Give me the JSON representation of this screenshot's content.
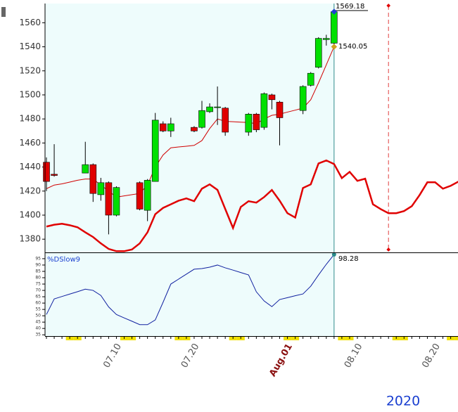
{
  "chart_data": [
    {
      "type": "candlestick",
      "categories": [
        null,
        null,
        null,
        null,
        null,
        null,
        null,
        null,
        null,
        "07.10",
        null,
        null,
        null,
        null,
        null,
        null,
        null,
        null,
        null,
        "07.20",
        null,
        null,
        null,
        null,
        null,
        null,
        null,
        null,
        null,
        null,
        null,
        "Aug.01",
        null,
        null,
        null,
        null,
        null,
        null,
        null,
        null,
        "08.10",
        null,
        null,
        null,
        null,
        null,
        null,
        null,
        null,
        null,
        "08.20",
        null,
        null,
        null
      ],
      "open": [
        1444,
        1434,
        null,
        null,
        null,
        1435,
        1442,
        1417,
        1427,
        1400,
        null,
        null,
        1427,
        1404,
        1428,
        1476,
        1470,
        null,
        null,
        1473,
        1473,
        1486,
        1490,
        1489,
        null,
        null,
        1469,
        1484,
        1473,
        1500,
        1494,
        null,
        null,
        1487,
        1508,
        1523,
        1546,
        1543,
        null,
        null,
        null,
        null,
        null,
        null,
        null,
        null,
        null,
        null,
        null,
        null,
        null,
        null,
        null,
        null
      ],
      "high": [
        1448,
        1459,
        null,
        null,
        null,
        1461,
        1443,
        1431,
        1428,
        1424,
        null,
        null,
        1428,
        1430,
        1485,
        1478,
        1481,
        null,
        null,
        1474,
        1495,
        1493,
        1507,
        1490,
        null,
        null,
        1485,
        1485,
        1502,
        1501,
        1495,
        null,
        null,
        1508,
        1519,
        1548,
        1550,
        1571,
        null,
        null,
        null,
        null,
        null,
        null,
        null,
        null,
        null,
        null,
        null,
        null,
        null,
        null,
        null,
        null
      ],
      "low": [
        1420,
        1432,
        null,
        null,
        null,
        1435,
        1411,
        1412,
        1384,
        1399,
        null,
        null,
        1404,
        1395,
        1428,
        1469,
        1465,
        null,
        null,
        1469,
        1472,
        1485,
        1475,
        1466,
        null,
        null,
        1466,
        1469,
        1471,
        1488,
        1458,
        null,
        null,
        1484,
        1507,
        1522,
        1541,
        1538,
        null,
        null,
        null,
        null,
        null,
        null,
        null,
        null,
        null,
        null,
        null,
        null,
        null,
        null,
        null,
        null
      ],
      "close": [
        1428,
        1433,
        null,
        null,
        null,
        1442,
        1418,
        1427,
        1400,
        1423,
        null,
        null,
        1405,
        1429,
        1479,
        1470,
        1476,
        null,
        null,
        1470,
        1487,
        1490,
        1490,
        1469,
        null,
        null,
        1484,
        1471,
        1501,
        1496,
        1481,
        null,
        null,
        1507,
        1518,
        1547,
        1547,
        1569.18,
        null,
        null,
        null,
        null,
        null,
        null,
        null,
        null,
        null,
        null,
        null,
        null,
        null,
        null,
        null,
        null
      ],
      "up_color": "#00e000",
      "down_color": "#e00000",
      "series": [
        {
          "color": "#d00000",
          "width": 1,
          "values": [
            1422,
            1425,
            1426,
            1427.5,
            1429,
            1430,
            1430,
            1425,
            1420,
            1415,
            1416,
            1417,
            1418,
            1425,
            1440,
            1450,
            1456,
            1456.7,
            1457.3,
            1458,
            1462,
            1472,
            1480,
            1478,
            1477.7,
            1477.3,
            1477,
            1476,
            1480,
            1483,
            1484,
            1485.7,
            1487.3,
            1489,
            1496,
            1510,
            1525,
            1540.05,
            null,
            null,
            null,
            null,
            null,
            null,
            null,
            null,
            null,
            null,
            null,
            null,
            null,
            null,
            null,
            null
          ]
        },
        {
          "color": "#e00000",
          "width": 2.5,
          "values": [
            1390.5,
            1392,
            1392.8,
            1391.6,
            1389.9,
            1385.7,
            1381.8,
            1376.5,
            1371.9,
            1370,
            1370,
            1371.4,
            1376.5,
            1385.7,
            1400.8,
            1406,
            1409,
            1412,
            1413.9,
            1411.6,
            1422,
            1425.6,
            1421,
            1405.1,
            1389.3,
            1406.8,
            1411.6,
            1410.4,
            1415,
            1420.9,
            1412,
            1401.6,
            1398,
            1422.6,
            1425.6,
            1443,
            1445.5,
            1442.5,
            1430.8,
            1436,
            1428.5,
            1430.3,
            1409,
            1405,
            1401.6,
            1401.6,
            1403.4,
            1407.5,
            1416.7,
            1427.3,
            1427.3,
            1422,
            1424.4,
            1427.9
          ]
        }
      ],
      "ylim": [
        1369,
        1576
      ],
      "yticks": [
        1380,
        1400,
        1420,
        1440,
        1460,
        1480,
        1500,
        1520,
        1540,
        1560
      ],
      "x_axis_year": "2020"
    },
    {
      "type": "line",
      "series": [
        {
          "name": "%DSlow9",
          "color": "#1020a0",
          "values": [
            51,
            63.3,
            65.2,
            67.1,
            69,
            71,
            70,
            66,
            57,
            51,
            48.3,
            45.7,
            43,
            43,
            46.7,
            60.6,
            75,
            78.9,
            82.8,
            86.7,
            87.2,
            88.3,
            90,
            87.8,
            86,
            84.1,
            82.2,
            68.9,
            61.7,
            57.2,
            62.8,
            64.3,
            65.8,
            67.2,
            73.3,
            82.2,
            90.6,
            98.28,
            null,
            null,
            null,
            null,
            null,
            null,
            null,
            null,
            null,
            null,
            null,
            null,
            null,
            null,
            null,
            null
          ]
        }
      ],
      "ylim": [
        34,
        99.4
      ],
      "yticks": [
        35,
        40,
        45,
        50,
        55,
        60,
        65,
        70,
        75,
        80,
        85,
        90,
        95
      ]
    }
  ]
}
